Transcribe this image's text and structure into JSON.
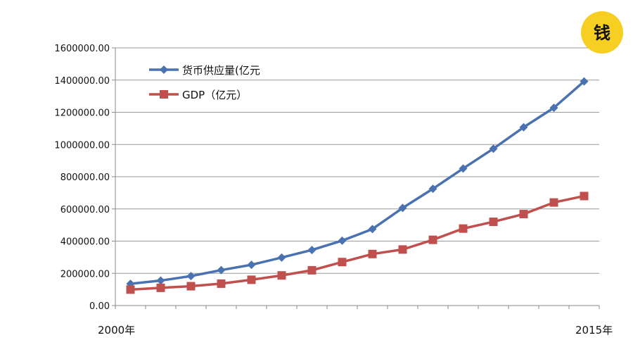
{
  "badge": {
    "text": "钱",
    "color": "#f7cf22"
  },
  "chart_data": {
    "type": "line",
    "title": "",
    "xlabel": "",
    "ylabel": "",
    "ylim": [
      0,
      1600000
    ],
    "y_ticks": [
      "0.00",
      "200000.00",
      "400000.00",
      "600000.00",
      "800000.00",
      "1000000.00",
      "1200000.00",
      "1400000.00",
      "1600000.00"
    ],
    "x_start_label": "2000年",
    "x_end_label": "2015年",
    "x": [
      2000,
      2001,
      2002,
      2003,
      2004,
      2005,
      2006,
      2007,
      2008,
      2009,
      2010,
      2011,
      2012,
      2013,
      2014,
      2015
    ],
    "grid": "horizontal",
    "legend_position": "top-left",
    "series": [
      {
        "name": "货币供应量(亿元",
        "color": "#4a72b0",
        "marker": "diamond",
        "values": [
          135000,
          155000,
          183000,
          220000,
          253000,
          298000,
          345000,
          403000,
          475000,
          606000,
          725000,
          851000,
          974000,
          1107000,
          1228000,
          1392000
        ]
      },
      {
        "name": "GDP（亿元）",
        "color": "#c0504d",
        "marker": "square",
        "values": [
          99000,
          110000,
          120000,
          136000,
          160000,
          187000,
          219000,
          270000,
          320000,
          348000,
          408000,
          478000,
          520000,
          568000,
          640000,
          680000
        ]
      }
    ]
  }
}
